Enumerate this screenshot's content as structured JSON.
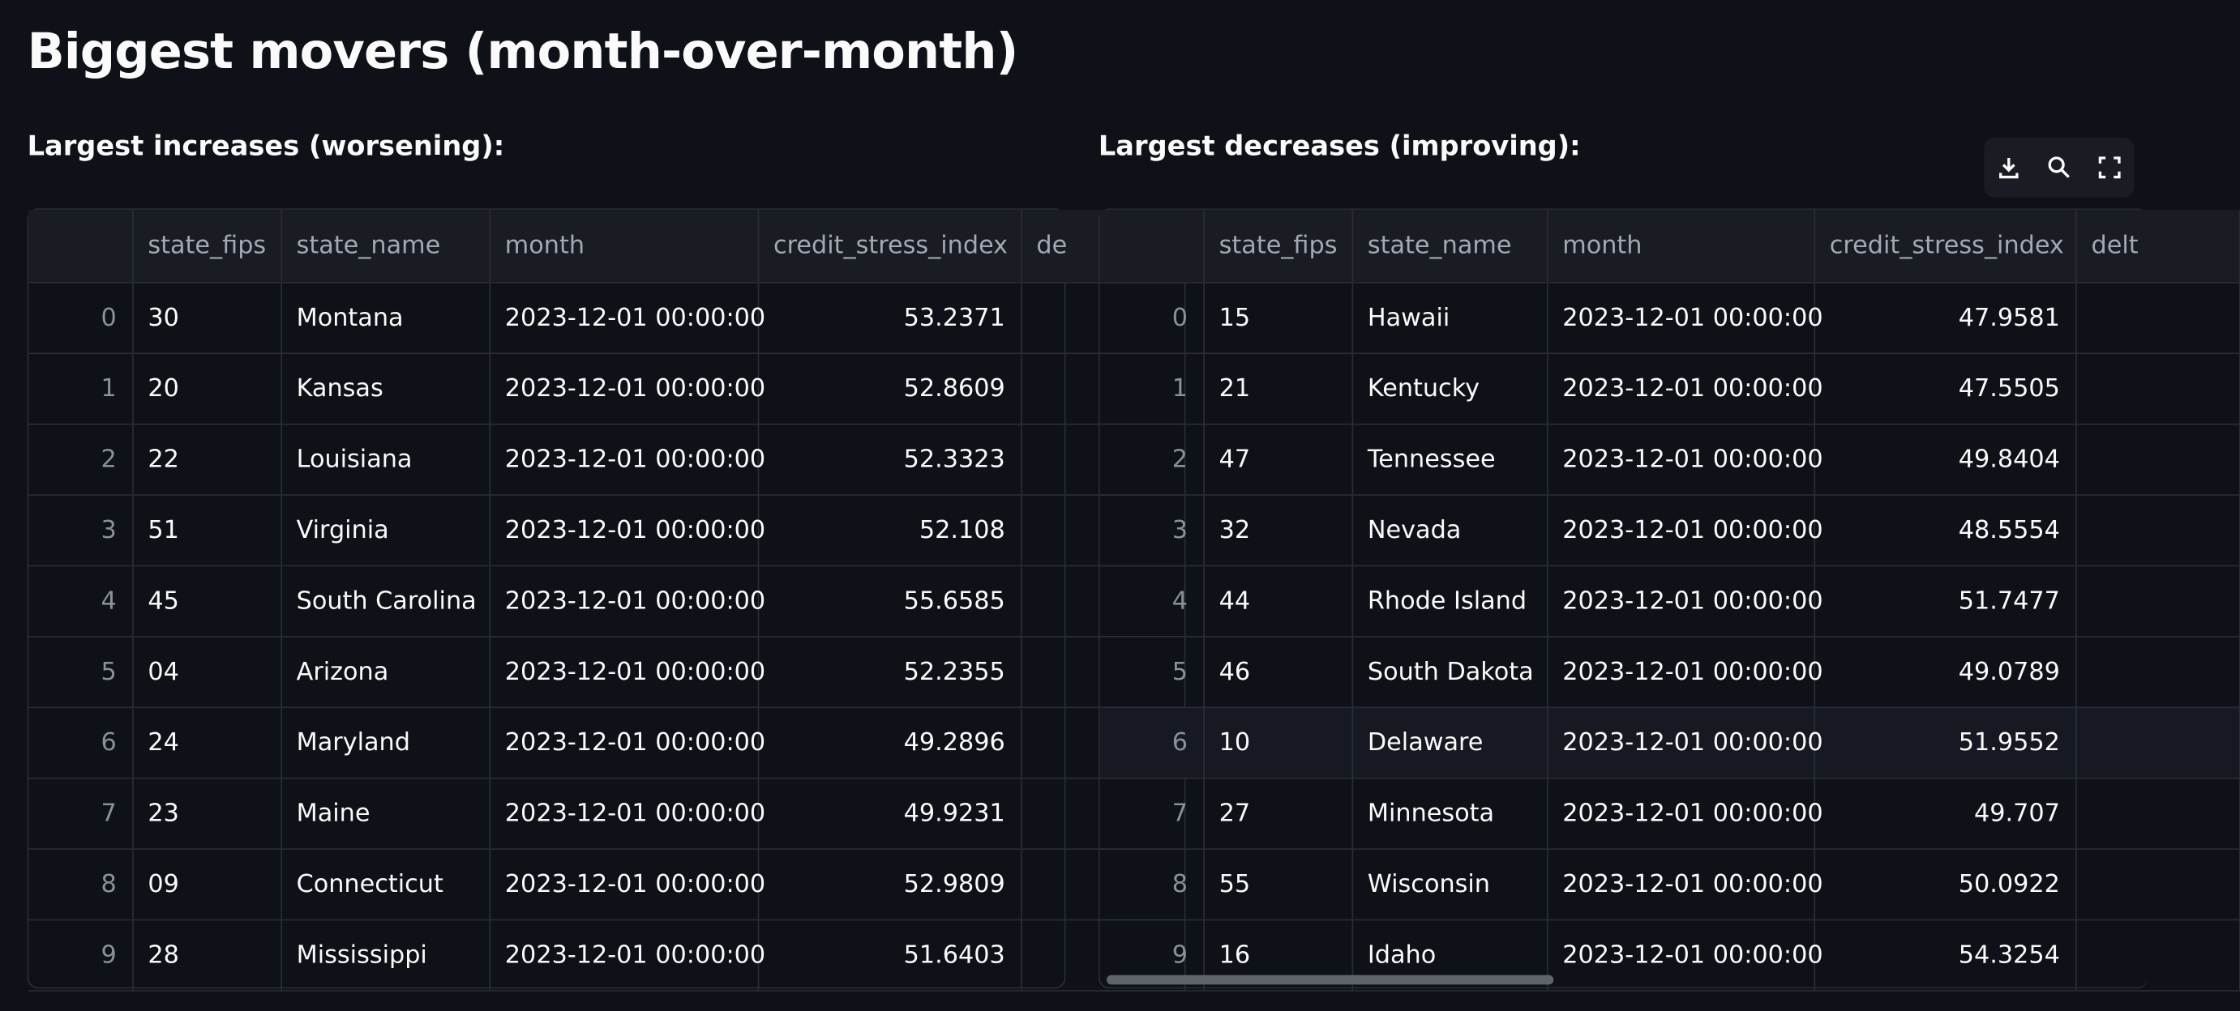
{
  "title": "Biggest movers (month-over-month)",
  "sections": [
    {
      "heading": "Largest increases (worsening):",
      "table": {
        "columns": [
          "",
          "state_fips",
          "state_name",
          "month",
          "credit_stress_index",
          "de"
        ],
        "rows": [
          [
            0,
            "30",
            "Montana",
            "2023-12-01 00:00:00",
            53.2371
          ],
          [
            1,
            "20",
            "Kansas",
            "2023-12-01 00:00:00",
            52.8609
          ],
          [
            2,
            "22",
            "Louisiana",
            "2023-12-01 00:00:00",
            52.3323
          ],
          [
            3,
            "51",
            "Virginia",
            "2023-12-01 00:00:00",
            52.108
          ],
          [
            4,
            "45",
            "South Carolina",
            "2023-12-01 00:00:00",
            55.6585
          ],
          [
            5,
            "04",
            "Arizona",
            "2023-12-01 00:00:00",
            52.2355
          ],
          [
            6,
            "24",
            "Maryland",
            "2023-12-01 00:00:00",
            49.2896
          ],
          [
            7,
            "23",
            "Maine",
            "2023-12-01 00:00:00",
            49.9231
          ],
          [
            8,
            "09",
            "Connecticut",
            "2023-12-01 00:00:00",
            52.9809
          ],
          [
            9,
            "28",
            "Mississippi",
            "2023-12-01 00:00:00",
            51.6403
          ]
        ]
      }
    },
    {
      "heading": "Largest decreases (improving):",
      "table": {
        "columns": [
          "",
          "state_fips",
          "state_name",
          "month",
          "credit_stress_index",
          "delt"
        ],
        "rows": [
          [
            0,
            "15",
            "Hawaii",
            "2023-12-01 00:00:00",
            47.9581
          ],
          [
            1,
            "21",
            "Kentucky",
            "2023-12-01 00:00:00",
            47.5505
          ],
          [
            2,
            "47",
            "Tennessee",
            "2023-12-01 00:00:00",
            49.8404
          ],
          [
            3,
            "32",
            "Nevada",
            "2023-12-01 00:00:00",
            48.5554
          ],
          [
            4,
            "44",
            "Rhode Island",
            "2023-12-01 00:00:00",
            51.7477
          ],
          [
            5,
            "46",
            "South Dakota",
            "2023-12-01 00:00:00",
            49.0789
          ],
          [
            6,
            "10",
            "Delaware",
            "2023-12-01 00:00:00",
            51.9552
          ],
          [
            7,
            "27",
            "Minnesota",
            "2023-12-01 00:00:00",
            49.707
          ],
          [
            8,
            "55",
            "Wisconsin",
            "2023-12-01 00:00:00",
            50.0922
          ],
          [
            9,
            "16",
            "Idaho",
            "2023-12-01 00:00:00",
            54.3254
          ]
        ]
      }
    }
  ]
}
